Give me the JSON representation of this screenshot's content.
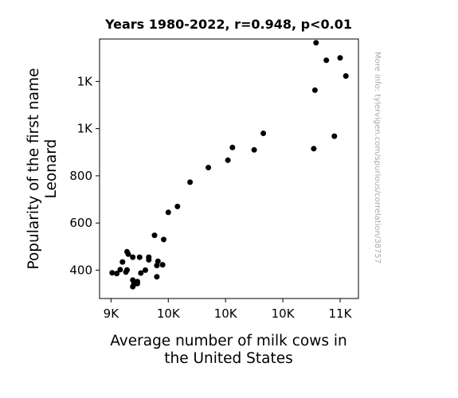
{
  "chart_data": {
    "type": "scatter",
    "title": "Years 1980-2022, r=0.948, p<0.01",
    "xlabel": [
      "Average number of milk cows in",
      "the United States"
    ],
    "ylabel": [
      "Popularity of the first name",
      "Leonard"
    ],
    "watermark": "More info: tylervigen.com/spurious/correlation/38757",
    "xlim": [
      8900,
      11160
    ],
    "ylim": [
      280,
      1380
    ],
    "x_ticks": [
      {
        "value": 9000,
        "label": "9K"
      },
      {
        "value": 9500,
        "label": "10K"
      },
      {
        "value": 10000,
        "label": "10K"
      },
      {
        "value": 10500,
        "label": "10K"
      },
      {
        "value": 11000,
        "label": "11K"
      }
    ],
    "y_ticks": [
      {
        "value": 400,
        "label": "400"
      },
      {
        "value": 600,
        "label": "600"
      },
      {
        "value": 800,
        "label": "800"
      },
      {
        "value": 1000,
        "label": "1K"
      },
      {
        "value": 1200,
        "label": "1K"
      }
    ],
    "marker_color": "#000000",
    "grid": false,
    "points": [
      [
        9010,
        389
      ],
      [
        9050,
        386
      ],
      [
        9080,
        402
      ],
      [
        9100,
        435
      ],
      [
        9130,
        392
      ],
      [
        9140,
        401
      ],
      [
        9140,
        478
      ],
      [
        9150,
        468
      ],
      [
        9190,
        455
      ],
      [
        9190,
        358
      ],
      [
        9190,
        330
      ],
      [
        9200,
        340
      ],
      [
        9230,
        352
      ],
      [
        9230,
        343
      ],
      [
        9260,
        388
      ],
      [
        9250,
        455
      ],
      [
        9300,
        400
      ],
      [
        9330,
        455
      ],
      [
        9330,
        444
      ],
      [
        9380,
        548
      ],
      [
        9400,
        372
      ],
      [
        9400,
        420
      ],
      [
        9410,
        438
      ],
      [
        9450,
        423
      ],
      [
        9460,
        530
      ],
      [
        9500,
        645
      ],
      [
        9580,
        670
      ],
      [
        9690,
        773
      ],
      [
        9850,
        835
      ],
      [
        10020,
        866
      ],
      [
        10060,
        920
      ],
      [
        10250,
        910
      ],
      [
        10330,
        980
      ],
      [
        10770,
        915
      ],
      [
        10780,
        1163
      ],
      [
        10790,
        1364
      ],
      [
        10880,
        1290
      ],
      [
        10950,
        968
      ],
      [
        11000,
        1300
      ],
      [
        11050,
        1223
      ]
    ]
  }
}
